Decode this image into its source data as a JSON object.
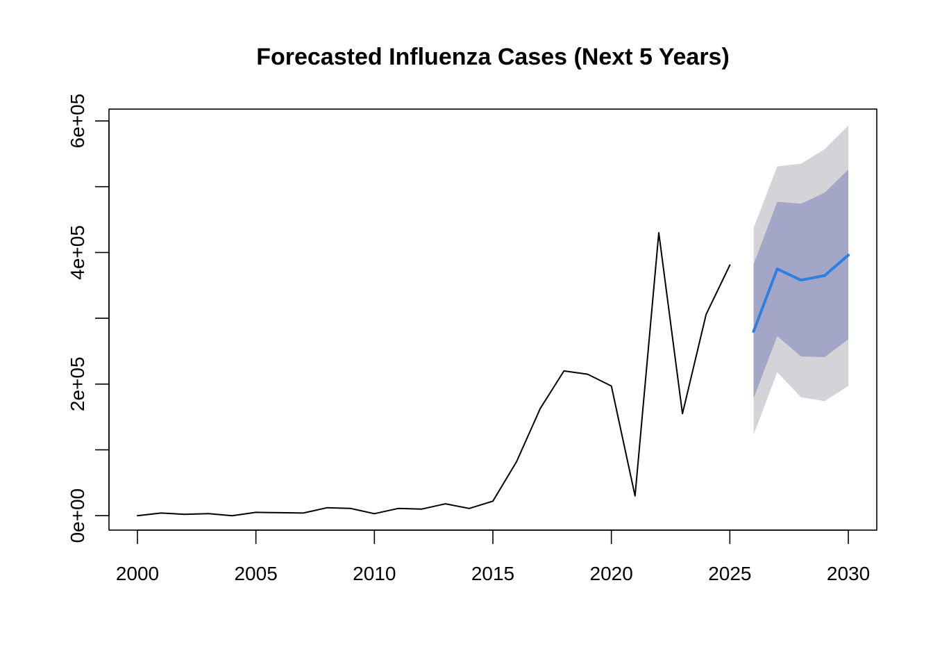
{
  "chart_data": {
    "type": "line",
    "title": "Forecasted Influenza Cases (Next 5 Years)",
    "xlabel": "",
    "ylabel": "",
    "xlim": [
      1998.8,
      2031.2
    ],
    "ylim": [
      -22000,
      618000
    ],
    "x_ticks": [
      2000,
      2005,
      2010,
      2015,
      2020,
      2025,
      2030
    ],
    "x_tick_labels": [
      "2000",
      "2005",
      "2010",
      "2015",
      "2020",
      "2025",
      "2030"
    ],
    "y_ticks": [
      0,
      100000,
      200000,
      300000,
      400000,
      500000,
      600000
    ],
    "y_tick_labels": [
      "0e+00",
      "",
      "2e+05",
      "",
      "4e+05",
      "",
      "6e+05"
    ],
    "grid": false,
    "series": [
      {
        "kind": "observed",
        "color": "#000000",
        "x": [
          2000,
          2001,
          2002,
          2003,
          2004,
          2005,
          2006,
          2007,
          2008,
          2009,
          2010,
          2011,
          2012,
          2013,
          2014,
          2015,
          2016,
          2017,
          2018,
          2019,
          2020,
          2021,
          2022,
          2023,
          2024,
          2025
        ],
        "y": [
          0,
          4000,
          2000,
          3000,
          0,
          5000,
          4500,
          4000,
          12000,
          11000,
          3000,
          11000,
          10000,
          18000,
          11000,
          22000,
          82000,
          163000,
          220000,
          215000,
          197000,
          30000,
          430000,
          155000,
          306000,
          381000
        ]
      },
      {
        "kind": "forecast",
        "color": "#2e7fe0",
        "x": [
          2026,
          2027,
          2028,
          2029,
          2030
        ],
        "y": [
          280000,
          375000,
          358000,
          365000,
          396000
        ]
      }
    ],
    "intervals": [
      {
        "kind": "outer",
        "color": "#d4d4d8",
        "x": [
          2026,
          2027,
          2028,
          2029,
          2030
        ],
        "lower": [
          123000,
          218000,
          180000,
          174000,
          197000
        ],
        "upper": [
          437000,
          531000,
          535000,
          557000,
          593000
        ]
      },
      {
        "kind": "inner",
        "color": "#a3a6c6",
        "x": [
          2026,
          2027,
          2028,
          2029,
          2030
        ],
        "lower": [
          178000,
          273000,
          242000,
          241000,
          268000
        ],
        "upper": [
          382000,
          477000,
          474000,
          491000,
          526000
        ]
      }
    ]
  }
}
